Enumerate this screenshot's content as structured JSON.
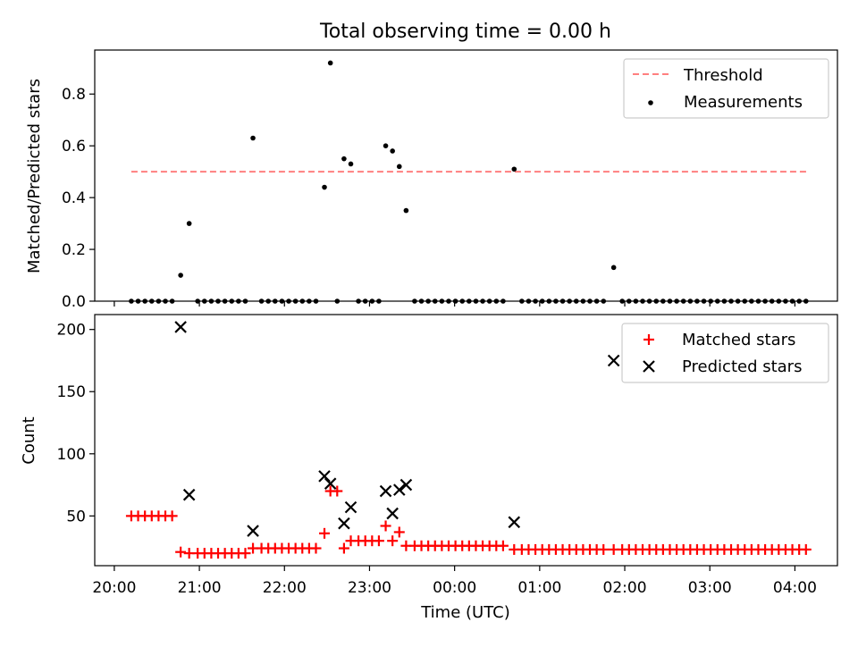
{
  "chart_data": [
    {
      "type": "scatter",
      "title": "Total observing time = 0.00 h",
      "xlabel": "",
      "ylabel": "Matched/Predicted stars",
      "xlim_hours": [
        19.77,
        28.5
      ],
      "ylim": [
        0,
        0.97
      ],
      "yticks": [
        0,
        0.2,
        0.4,
        0.6,
        0.8
      ],
      "ytick_labels": [
        "0.0",
        "0.2",
        "0.4",
        "0.6",
        "0.8"
      ],
      "xticks_hours": [
        20,
        21,
        22,
        23,
        24,
        25,
        26,
        27,
        28
      ],
      "grid": false,
      "legend_position": "top-right",
      "threshold": {
        "name": "Threshold",
        "value": 0.5,
        "x_range_hours": [
          20.2,
          28.15
        ],
        "color": "#ff7f7f"
      },
      "series": [
        {
          "name": "Measurements",
          "color": "#000000",
          "x": [
            20.2,
            20.28,
            20.36,
            20.44,
            20.52,
            20.6,
            20.68,
            20.78,
            20.88,
            20.98,
            21.06,
            21.14,
            21.22,
            21.3,
            21.38,
            21.46,
            21.54,
            21.63,
            21.73,
            21.81,
            21.89,
            21.97,
            22.05,
            22.13,
            22.21,
            22.29,
            22.37,
            22.47,
            22.54,
            22.62,
            22.7,
            22.78,
            22.87,
            22.95,
            23.03,
            23.11,
            23.19,
            23.27,
            23.35,
            23.43,
            23.53,
            23.61,
            23.69,
            23.77,
            23.85,
            23.93,
            24.01,
            24.09,
            24.17,
            24.25,
            24.33,
            24.41,
            24.49,
            24.57,
            24.7,
            24.79,
            24.87,
            24.95,
            25.03,
            25.11,
            25.19,
            25.27,
            25.35,
            25.43,
            25.51,
            25.59,
            25.67,
            25.75,
            25.87,
            25.97,
            26.05,
            26.13,
            26.21,
            26.29,
            26.37,
            26.45,
            26.53,
            26.61,
            26.69,
            26.77,
            26.85,
            26.93,
            27.01,
            27.09,
            27.17,
            27.25,
            27.33,
            27.41,
            27.49,
            27.57,
            27.65,
            27.73,
            27.81,
            27.89,
            27.97,
            28.05,
            28.13
          ],
          "y": [
            0,
            0,
            0,
            0,
            0,
            0,
            0,
            0.1,
            0.3,
            0,
            0,
            0,
            0,
            0,
            0,
            0,
            0,
            0.63,
            0,
            0,
            0,
            0,
            0,
            0,
            0,
            0,
            0,
            0.44,
            0.92,
            0,
            0.55,
            0.53,
            0,
            0,
            0,
            0,
            0.6,
            0.58,
            0.52,
            0.35,
            0,
            0,
            0,
            0,
            0,
            0,
            0,
            0,
            0,
            0,
            0,
            0,
            0,
            0,
            0.51,
            0,
            0,
            0,
            0,
            0,
            0,
            0,
            0,
            0,
            0,
            0,
            0,
            0,
            0.13,
            0,
            0,
            0,
            0,
            0,
            0,
            0,
            0,
            0,
            0,
            0,
            0,
            0,
            0,
            0,
            0,
            0,
            0,
            0,
            0,
            0,
            0,
            0,
            0,
            0,
            0,
            0,
            0
          ]
        }
      ]
    },
    {
      "type": "scatter",
      "title": "",
      "xlabel": "Time (UTC)",
      "ylabel": "Count",
      "xlim_hours": [
        19.77,
        28.5
      ],
      "ylim": [
        10,
        212
      ],
      "yticks": [
        50,
        100,
        150,
        200
      ],
      "ytick_labels": [
        "50",
        "100",
        "150",
        "200"
      ],
      "xticks_hours": [
        20,
        21,
        22,
        23,
        24,
        25,
        26,
        27,
        28
      ],
      "xtick_labels": [
        "20:00",
        "21:00",
        "22:00",
        "23:00",
        "00:00",
        "01:00",
        "02:00",
        "03:00",
        "04:00"
      ],
      "grid": false,
      "legend_position": "top-right",
      "series": [
        {
          "name": "Matched stars",
          "color": "#ff0000",
          "marker": "plus",
          "x": [
            20.2,
            20.28,
            20.36,
            20.44,
            20.52,
            20.6,
            20.68,
            20.78,
            20.88,
            20.98,
            21.06,
            21.14,
            21.22,
            21.3,
            21.38,
            21.46,
            21.54,
            21.63,
            21.73,
            21.81,
            21.89,
            21.97,
            22.05,
            22.13,
            22.21,
            22.29,
            22.37,
            22.47,
            22.54,
            22.62,
            22.7,
            22.78,
            22.87,
            22.95,
            23.03,
            23.11,
            23.19,
            23.27,
            23.35,
            23.43,
            23.53,
            23.61,
            23.69,
            23.77,
            23.85,
            23.93,
            24.01,
            24.09,
            24.17,
            24.25,
            24.33,
            24.41,
            24.49,
            24.57,
            24.7,
            24.79,
            24.87,
            24.95,
            25.03,
            25.11,
            25.19,
            25.27,
            25.35,
            25.43,
            25.51,
            25.59,
            25.67,
            25.75,
            25.87,
            25.97,
            26.05,
            26.13,
            26.21,
            26.29,
            26.37,
            26.45,
            26.53,
            26.61,
            26.69,
            26.77,
            26.85,
            26.93,
            27.01,
            27.09,
            27.17,
            27.25,
            27.33,
            27.41,
            27.49,
            27.57,
            27.65,
            27.73,
            27.81,
            27.89,
            27.97,
            28.05,
            28.13
          ],
          "y": [
            50,
            50,
            50,
            50,
            50,
            50,
            50,
            21,
            20,
            20,
            20,
            20,
            20,
            20,
            20,
            20,
            20,
            24,
            24,
            24,
            24,
            24,
            24,
            24,
            24,
            24,
            24,
            36,
            70,
            70,
            24,
            30,
            30,
            30,
            30,
            30,
            42,
            30,
            37,
            26,
            26,
            26,
            26,
            26,
            26,
            26,
            26,
            26,
            26,
            26,
            26,
            26,
            26,
            26,
            23,
            23,
            23,
            23,
            23,
            23,
            23,
            23,
            23,
            23,
            23,
            23,
            23,
            23,
            23,
            23,
            23,
            23,
            23,
            23,
            23,
            23,
            23,
            23,
            23,
            23,
            23,
            23,
            23,
            23,
            23,
            23,
            23,
            23,
            23,
            23,
            23,
            23,
            23,
            23,
            23,
            23,
            23
          ]
        },
        {
          "name": "Predicted stars",
          "color": "#000000",
          "marker": "x",
          "x": [
            20.78,
            20.88,
            21.63,
            22.47,
            22.54,
            22.7,
            22.78,
            23.19,
            23.27,
            23.35,
            23.43,
            24.7,
            25.87
          ],
          "y": [
            202,
            67,
            38,
            82,
            76,
            44,
            57,
            70,
            52,
            71,
            75,
            45,
            175
          ]
        }
      ]
    }
  ]
}
